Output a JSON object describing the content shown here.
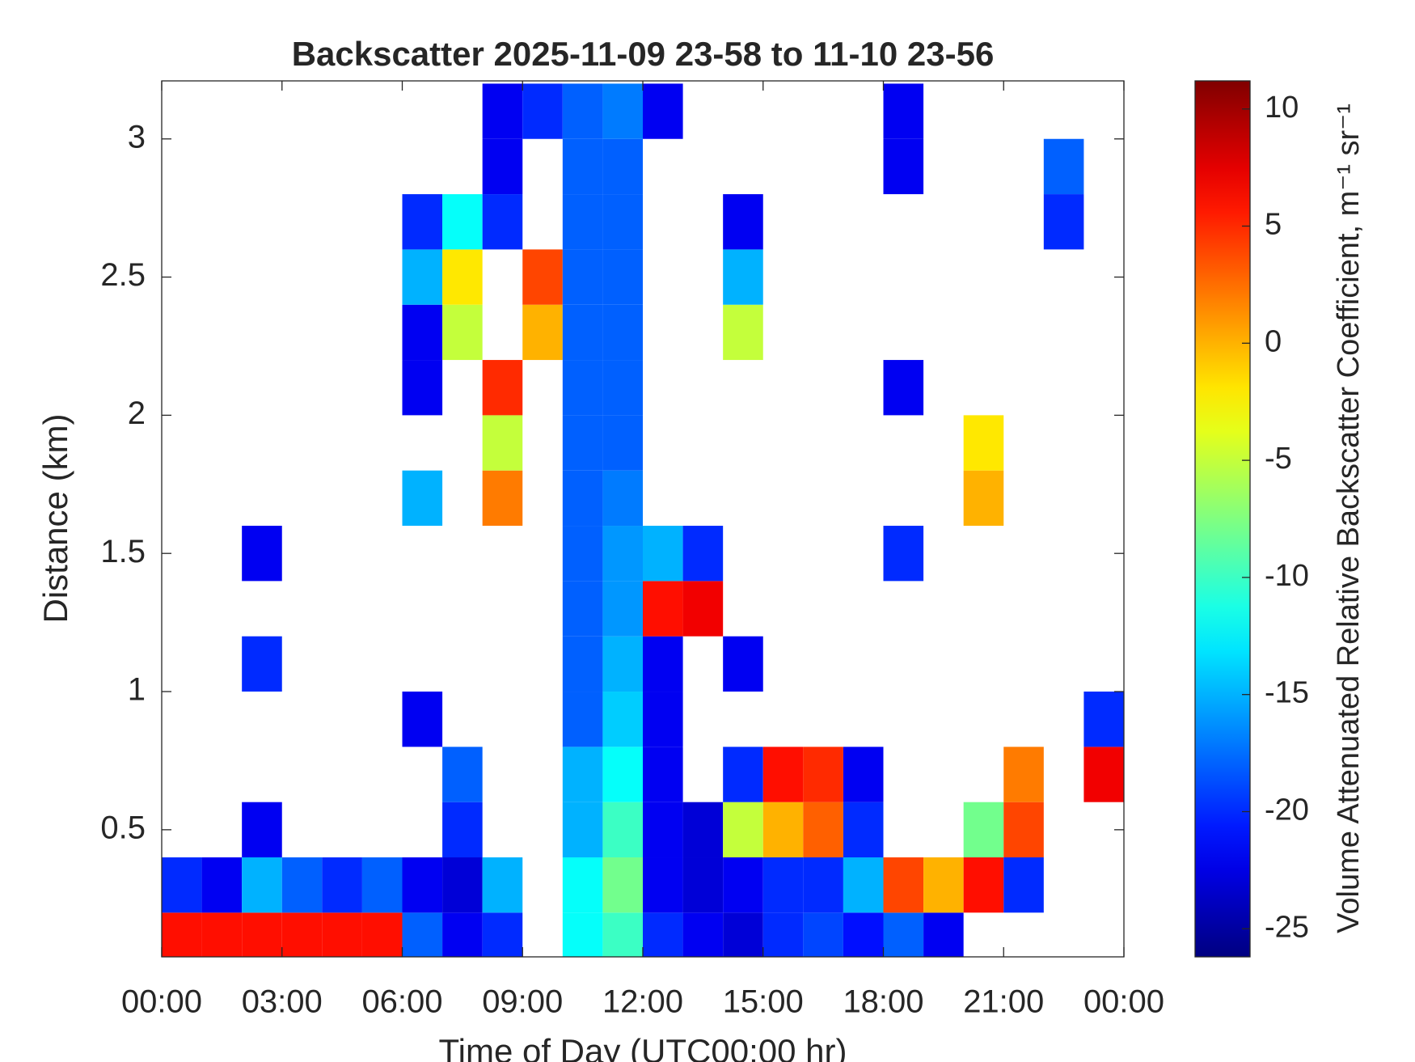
{
  "chart_data": {
    "type": "heatmap",
    "title": "Backscatter 2025-11-09 23-58 to 11-10 23-56",
    "xlabel": "Time of Day (UTC00:00 hr)",
    "ylabel": "Distance (km)",
    "colorbar_label": "Volume Attenuated Relative Backscatter Coefficient, m⁻¹ sr⁻¹",
    "colormap": "jet",
    "xlim": [
      0,
      24
    ],
    "ylim": [
      0.04,
      3.21
    ],
    "clim": [
      -26.2,
      11.2
    ],
    "xticks": [
      {
        "value": 0,
        "label": "00:00"
      },
      {
        "value": 3,
        "label": "03:00"
      },
      {
        "value": 6,
        "label": "06:00"
      },
      {
        "value": 9,
        "label": "09:00"
      },
      {
        "value": 12,
        "label": "12:00"
      },
      {
        "value": 15,
        "label": "15:00"
      },
      {
        "value": 18,
        "label": "18:00"
      },
      {
        "value": 21,
        "label": "21:00"
      },
      {
        "value": 24,
        "label": "00:00"
      }
    ],
    "yticks": [
      0.5,
      1,
      1.5,
      2,
      2.5,
      3
    ],
    "cticks": [
      -25,
      -20,
      -15,
      -10,
      -5,
      0,
      5,
      10
    ],
    "x_bins": [
      0,
      1,
      2,
      3,
      4,
      5,
      6,
      7,
      8,
      9,
      10,
      11,
      12,
      13,
      14,
      15,
      16,
      17,
      18,
      19,
      20,
      21,
      22,
      23,
      24
    ],
    "y_bins": [
      0,
      0.2,
      0.4,
      0.6,
      0.8,
      1,
      1.2,
      1.4,
      1.6,
      1.8,
      2,
      2.2,
      2.4,
      2.6,
      2.8,
      3,
      3.2
    ],
    "values": [
      [
        6,
        6,
        6,
        6,
        6,
        6,
        -18,
        -22,
        -20,
        null,
        -12,
        -10,
        -20,
        -22,
        -23,
        -20,
        -19,
        -21,
        -18,
        -22,
        null,
        null,
        null,
        null
      ],
      [
        -20,
        -22,
        -15,
        -18,
        -20,
        -18,
        -22,
        -23,
        -15,
        null,
        -12,
        -8,
        -22,
        -23,
        -22,
        -20,
        -20,
        -15,
        4,
        0,
        6,
        -20,
        null,
        null
      ],
      [
        null,
        null,
        -22,
        null,
        null,
        null,
        null,
        -20,
        null,
        null,
        -15,
        -10,
        -22,
        -23,
        -5,
        0,
        3,
        -20,
        null,
        null,
        -8,
        4,
        null,
        null
      ],
      [
        null,
        null,
        null,
        null,
        null,
        null,
        null,
        -18,
        null,
        null,
        -15,
        -12,
        -22,
        null,
        -20,
        6,
        5,
        -22,
        null,
        null,
        null,
        2,
        null,
        7
      ],
      [
        null,
        null,
        null,
        null,
        null,
        null,
        -22,
        null,
        null,
        null,
        -18,
        -14,
        -22,
        null,
        null,
        null,
        null,
        null,
        null,
        null,
        null,
        null,
        null,
        -20
      ],
      [
        null,
        null,
        -20,
        null,
        null,
        null,
        null,
        null,
        null,
        null,
        -18,
        -15,
        -22,
        null,
        -22,
        null,
        null,
        null,
        null,
        null,
        null,
        null,
        null,
        null
      ],
      [
        null,
        null,
        null,
        null,
        null,
        null,
        null,
        null,
        null,
        null,
        -18,
        -16,
        6,
        7,
        null,
        null,
        null,
        null,
        null,
        null,
        null,
        null,
        null,
        null
      ],
      [
        null,
        null,
        -22,
        null,
        null,
        null,
        null,
        null,
        null,
        null,
        -18,
        -16,
        -15,
        -20,
        null,
        null,
        null,
        null,
        -20,
        null,
        null,
        null,
        null,
        null
      ],
      [
        null,
        null,
        null,
        null,
        null,
        null,
        -15,
        null,
        2,
        null,
        -18,
        -17,
        null,
        null,
        null,
        null,
        null,
        null,
        null,
        null,
        0,
        null,
        null,
        null
      ],
      [
        null,
        null,
        null,
        null,
        null,
        null,
        null,
        null,
        -5,
        null,
        -18,
        -18,
        null,
        null,
        null,
        null,
        null,
        null,
        null,
        null,
        -2,
        null,
        null,
        null
      ],
      [
        null,
        null,
        null,
        null,
        null,
        null,
        -22,
        null,
        5,
        null,
        -18,
        -18,
        null,
        null,
        null,
        null,
        null,
        null,
        -22,
        null,
        null,
        null,
        null,
        null
      ],
      [
        null,
        null,
        null,
        null,
        null,
        null,
        -22,
        -5,
        null,
        0,
        -18,
        -18,
        null,
        null,
        -5,
        null,
        null,
        null,
        null,
        null,
        null,
        null,
        null,
        null
      ],
      [
        null,
        null,
        null,
        null,
        null,
        null,
        -15,
        -2,
        null,
        4,
        -18,
        -18,
        null,
        null,
        -15,
        null,
        null,
        null,
        null,
        null,
        null,
        null,
        null,
        null
      ],
      [
        null,
        null,
        null,
        null,
        null,
        null,
        -20,
        -12,
        -20,
        null,
        -18,
        -18,
        null,
        null,
        -22,
        null,
        null,
        null,
        null,
        null,
        null,
        null,
        -20,
        null
      ],
      [
        null,
        null,
        null,
        null,
        null,
        null,
        null,
        null,
        -22,
        null,
        -18,
        -18,
        null,
        null,
        null,
        null,
        null,
        null,
        -22,
        null,
        null,
        null,
        -18,
        null
      ],
      [
        null,
        null,
        null,
        null,
        null,
        null,
        null,
        null,
        -22,
        -20,
        -18,
        -17,
        -22,
        null,
        null,
        null,
        null,
        null,
        -22,
        null,
        null,
        null,
        null,
        null
      ]
    ]
  }
}
